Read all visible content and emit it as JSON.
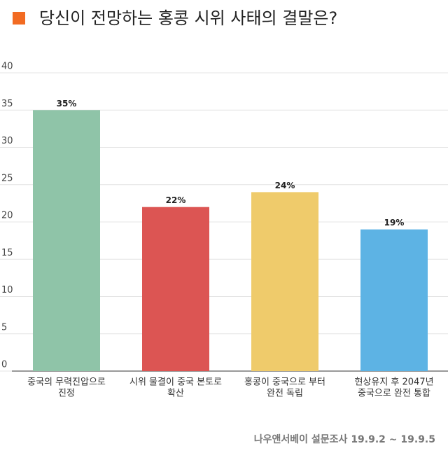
{
  "chart_data": {
    "type": "bar",
    "title": "당신이 전망하는 홍콩 시위 사태의 결말은?",
    "categories": [
      [
        "중국의 무력진압으로",
        "진정"
      ],
      [
        "시위 물결이 중국 본토로",
        "확산"
      ],
      [
        "홍콩이 중국으로 부터",
        "완전 독립"
      ],
      [
        "현상유지 후 2047년",
        "중국으로 완전 통합"
      ]
    ],
    "values": [
      35,
      22,
      24,
      19
    ],
    "value_labels": [
      "35%",
      "22%",
      "24%",
      "19%"
    ],
    "colors": [
      "#8fc4a8",
      "#dc5553",
      "#efcb6b",
      "#5db3e4"
    ],
    "ylim": [
      0,
      40
    ],
    "yticks": [
      0,
      5,
      10,
      15,
      20,
      25,
      30,
      35,
      40
    ],
    "grid": true,
    "source": "나우앤서베이 설문조사 19.9.2 ~ 19.9.5"
  }
}
